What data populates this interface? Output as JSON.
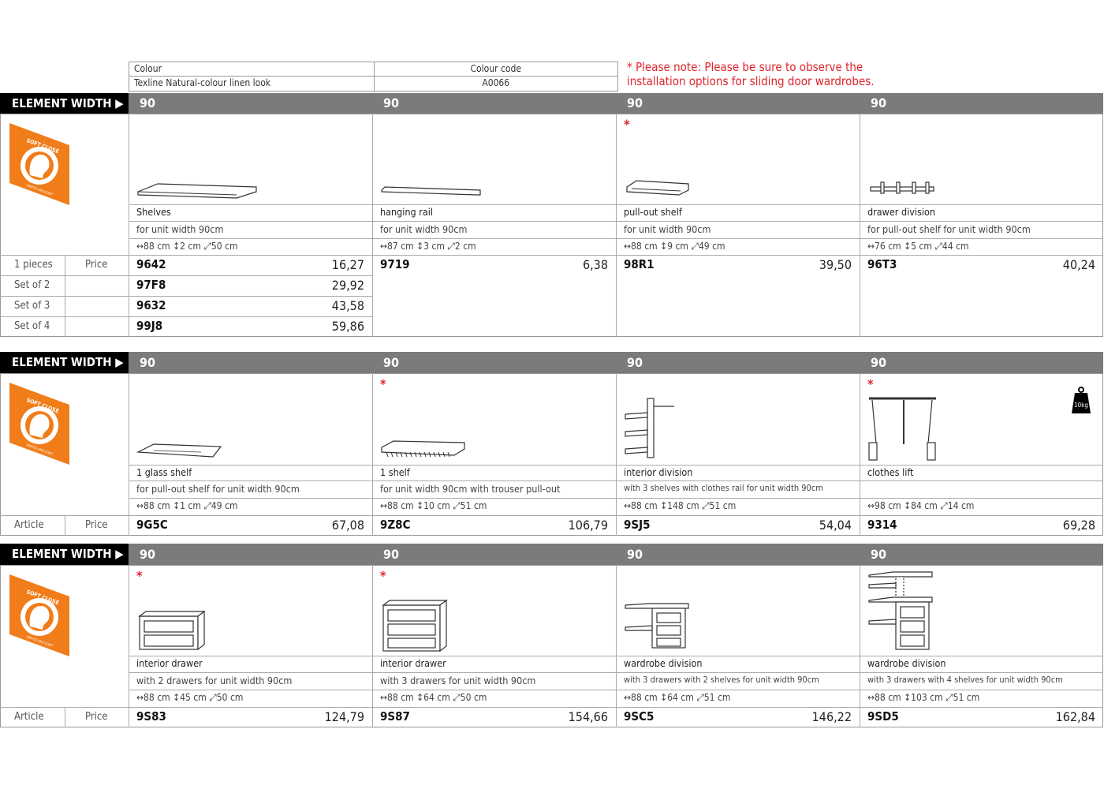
{
  "colour_table": {
    "colour_label": "Colour",
    "colour_value": "Texline Natural-colour linen look",
    "code_label": "Colour code",
    "code_value": "A0066"
  },
  "note": {
    "line1": "* Please note: Please be sure to observe the",
    "line2": "installation options for sliding door wardrobes.",
    "color": "#e0232b"
  },
  "element_width_label": "ELEMENT WIDTH ▶",
  "soft_close_badge": {
    "text_top": "SOFT CLOSE",
    "text_bottom": "GENTLE AND QUIET",
    "color": "#f07d1a"
  },
  "weight_icon_label": "10kg",
  "sections": [
    {
      "row_labels": [
        [
          "1 pieces",
          "Price"
        ],
        [
          "Set of 2",
          ""
        ],
        [
          "Set of 3",
          ""
        ],
        [
          "Set of 4",
          ""
        ]
      ],
      "items": [
        {
          "width": "90",
          "icon": "shelf",
          "note_star": false,
          "name": "Shelves",
          "desc": "for unit width 90cm",
          "dims": "↔88 cm ↕2 cm ⤢50 cm",
          "prices": [
            [
              "9642",
              "16,27"
            ],
            [
              "97F8",
              "29,92"
            ],
            [
              "9632",
              "43,58"
            ],
            [
              "99J8",
              "59,86"
            ]
          ]
        },
        {
          "width": "90",
          "icon": "hanging-rail",
          "note_star": false,
          "name": "hanging rail",
          "desc": "for unit width 90cm",
          "dims": "↔87 cm ↕3 cm ⤢2 cm",
          "prices": [
            [
              "9719",
              "6,38"
            ]
          ]
        },
        {
          "width": "90",
          "icon": "pull-out-shelf",
          "note_star": true,
          "name": "pull-out shelf",
          "desc": "for unit width 90cm",
          "dims": "↔88 cm ↕9 cm ⤢49 cm",
          "prices": [
            [
              "98R1",
              "39,50"
            ]
          ]
        },
        {
          "width": "90",
          "icon": "drawer-division",
          "note_star": false,
          "name": "drawer division",
          "desc": "for pull-out shelf for unit width 90cm",
          "dims": "↔76 cm ↕5 cm ⤢44 cm",
          "prices": [
            [
              "96T3",
              "40,24"
            ]
          ]
        }
      ]
    },
    {
      "row_labels": [
        [
          "Article",
          "Price"
        ]
      ],
      "items": [
        {
          "width": "90",
          "icon": "glass-shelf",
          "note_star": false,
          "name": "1 glass shelf",
          "desc": "for pull-out shelf for unit width 90cm",
          "dims": "↔88 cm ↕1 cm ⤢49 cm",
          "prices": [
            [
              "9G5C",
              "67,08"
            ]
          ]
        },
        {
          "width": "90",
          "icon": "trouser-pull-out",
          "note_star": true,
          "name": "1 shelf",
          "desc": "for unit width 90cm with trouser pull-out",
          "dims": "↔88 cm ↕10 cm ⤢51 cm",
          "prices": [
            [
              "9Z8C",
              "106,79"
            ]
          ]
        },
        {
          "width": "90",
          "icon": "interior-division",
          "note_star": false,
          "name": "interior division",
          "desc": "with 3 shelves with clothes rail for unit width 90cm",
          "dims": "↔88 cm ↕148 cm ⤢51 cm",
          "prices": [
            [
              "9SJ5",
              "54,04"
            ]
          ]
        },
        {
          "width": "90",
          "icon": "clothes-lift",
          "note_star": true,
          "name": "clothes lift",
          "desc": "",
          "dims": "↔98 cm ↕84 cm ⤢14 cm",
          "prices": [
            [
              "9314",
              "69,28"
            ]
          ]
        }
      ]
    },
    {
      "row_labels": [
        [
          "Article",
          "Price"
        ]
      ],
      "items": [
        {
          "width": "90",
          "icon": "drawer-2",
          "note_star": true,
          "name": "interior drawer",
          "desc": "with 2 drawers for unit width 90cm",
          "dims": "↔88 cm ↕45 cm ⤢50 cm",
          "prices": [
            [
              "9S83",
              "124,79"
            ]
          ]
        },
        {
          "width": "90",
          "icon": "drawer-3",
          "note_star": true,
          "name": "interior drawer",
          "desc": "with 3 drawers for unit width 90cm",
          "dims": "↔88 cm ↕64 cm ⤢50 cm",
          "prices": [
            [
              "9S87",
              "154,66"
            ]
          ]
        },
        {
          "width": "90",
          "icon": "wardrobe-division-2",
          "note_star": false,
          "name": "wardrobe division",
          "desc": "with 3 drawers with 2 shelves for unit width 90cm",
          "dims": "↔88 cm ↕64 cm ⤢51 cm",
          "prices": [
            [
              "9SC5",
              "146,22"
            ]
          ]
        },
        {
          "width": "90",
          "icon": "wardrobe-division-4",
          "note_star": false,
          "name": "wardrobe division",
          "desc": "with 3 drawers with 4 shelves for unit width 90cm",
          "dims": "↔88 cm ↕103 cm ⤢51 cm",
          "prices": [
            [
              "9SD5",
              "162,84"
            ]
          ]
        }
      ]
    }
  ]
}
